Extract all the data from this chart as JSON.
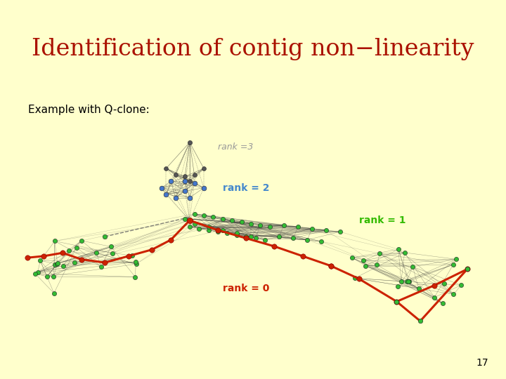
{
  "bg_color": "#ffffcc",
  "title": "Identification of contig non−linearity",
  "title_color": "#aa1100",
  "title_fontsize": 24,
  "subtitle": "Example with Q-clone:",
  "subtitle_fontsize": 11,
  "slide_number": "17",
  "graph_bg": "#ffffff",
  "rank3_label": "rank =3",
  "rank3_color": "#999999",
  "rank2_label": "rank = 2",
  "rank2_color": "#4488cc",
  "rank1_label": "rank = 1",
  "rank1_color": "#33bb00",
  "rank0_label": "rank = 0",
  "rank0_color": "#cc2200",
  "node_green": "#33bb33",
  "node_blue": "#4477cc",
  "node_dark": "#555555",
  "node_red": "#cc2200",
  "edge_dark": "#333333",
  "edge_dashed": "#888888"
}
